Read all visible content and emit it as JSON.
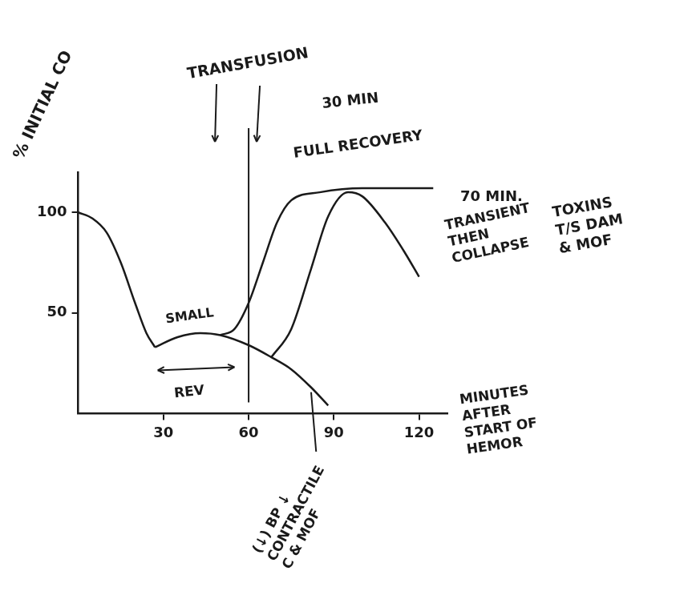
{
  "chart_data": {
    "type": "line",
    "y_label": "% INITIAL CO",
    "x_label": "MINUTES AFTER START OF HEMOR",
    "xlim": [
      0,
      130
    ],
    "xticks": [
      30,
      60,
      90,
      120
    ],
    "ylim": [
      0,
      120
    ],
    "yticks": [
      50,
      100
    ],
    "grid": false,
    "color": "#1a1a1a",
    "marker": "none",
    "line_style": "solid",
    "series": [
      {
        "x": [
          0,
          5,
          10,
          15,
          20,
          24,
          27
        ],
        "values": [
          100,
          97,
          90,
          75,
          55,
          40,
          33
        ]
      },
      {
        "name": "SMALL",
        "x": [
          27,
          35,
          43,
          50,
          60,
          68,
          75,
          82,
          88
        ],
        "values": [
          33,
          38,
          40,
          39,
          34,
          28,
          22,
          13,
          4
        ]
      },
      {
        "name": "30 MIN",
        "x": [
          50,
          55,
          60,
          65,
          70,
          75,
          85,
          100,
          125
        ],
        "values": [
          39,
          42,
          55,
          75,
          95,
          106,
          110,
          112,
          112
        ]
      },
      {
        "name": "70 MIN.",
        "x": [
          68,
          75,
          82,
          88,
          95,
          100,
          108,
          115,
          120
        ],
        "values": [
          28,
          42,
          72,
          98,
          110,
          108,
          95,
          80,
          68
        ]
      }
    ],
    "annotations": [
      {
        "text": "TRANSFUSION",
        "x": 60
      },
      {
        "text": "FULL RECOVERY"
      },
      {
        "text": "TRANSIENT THEN COLLAPSE"
      },
      {
        "text": "TOXINS T/S DAM & MOF"
      },
      {
        "text": "REV",
        "x": [
          28,
          55
        ]
      },
      {
        "text": "(↓) BP ↓ CONTRACTILE C & MOF"
      }
    ]
  }
}
